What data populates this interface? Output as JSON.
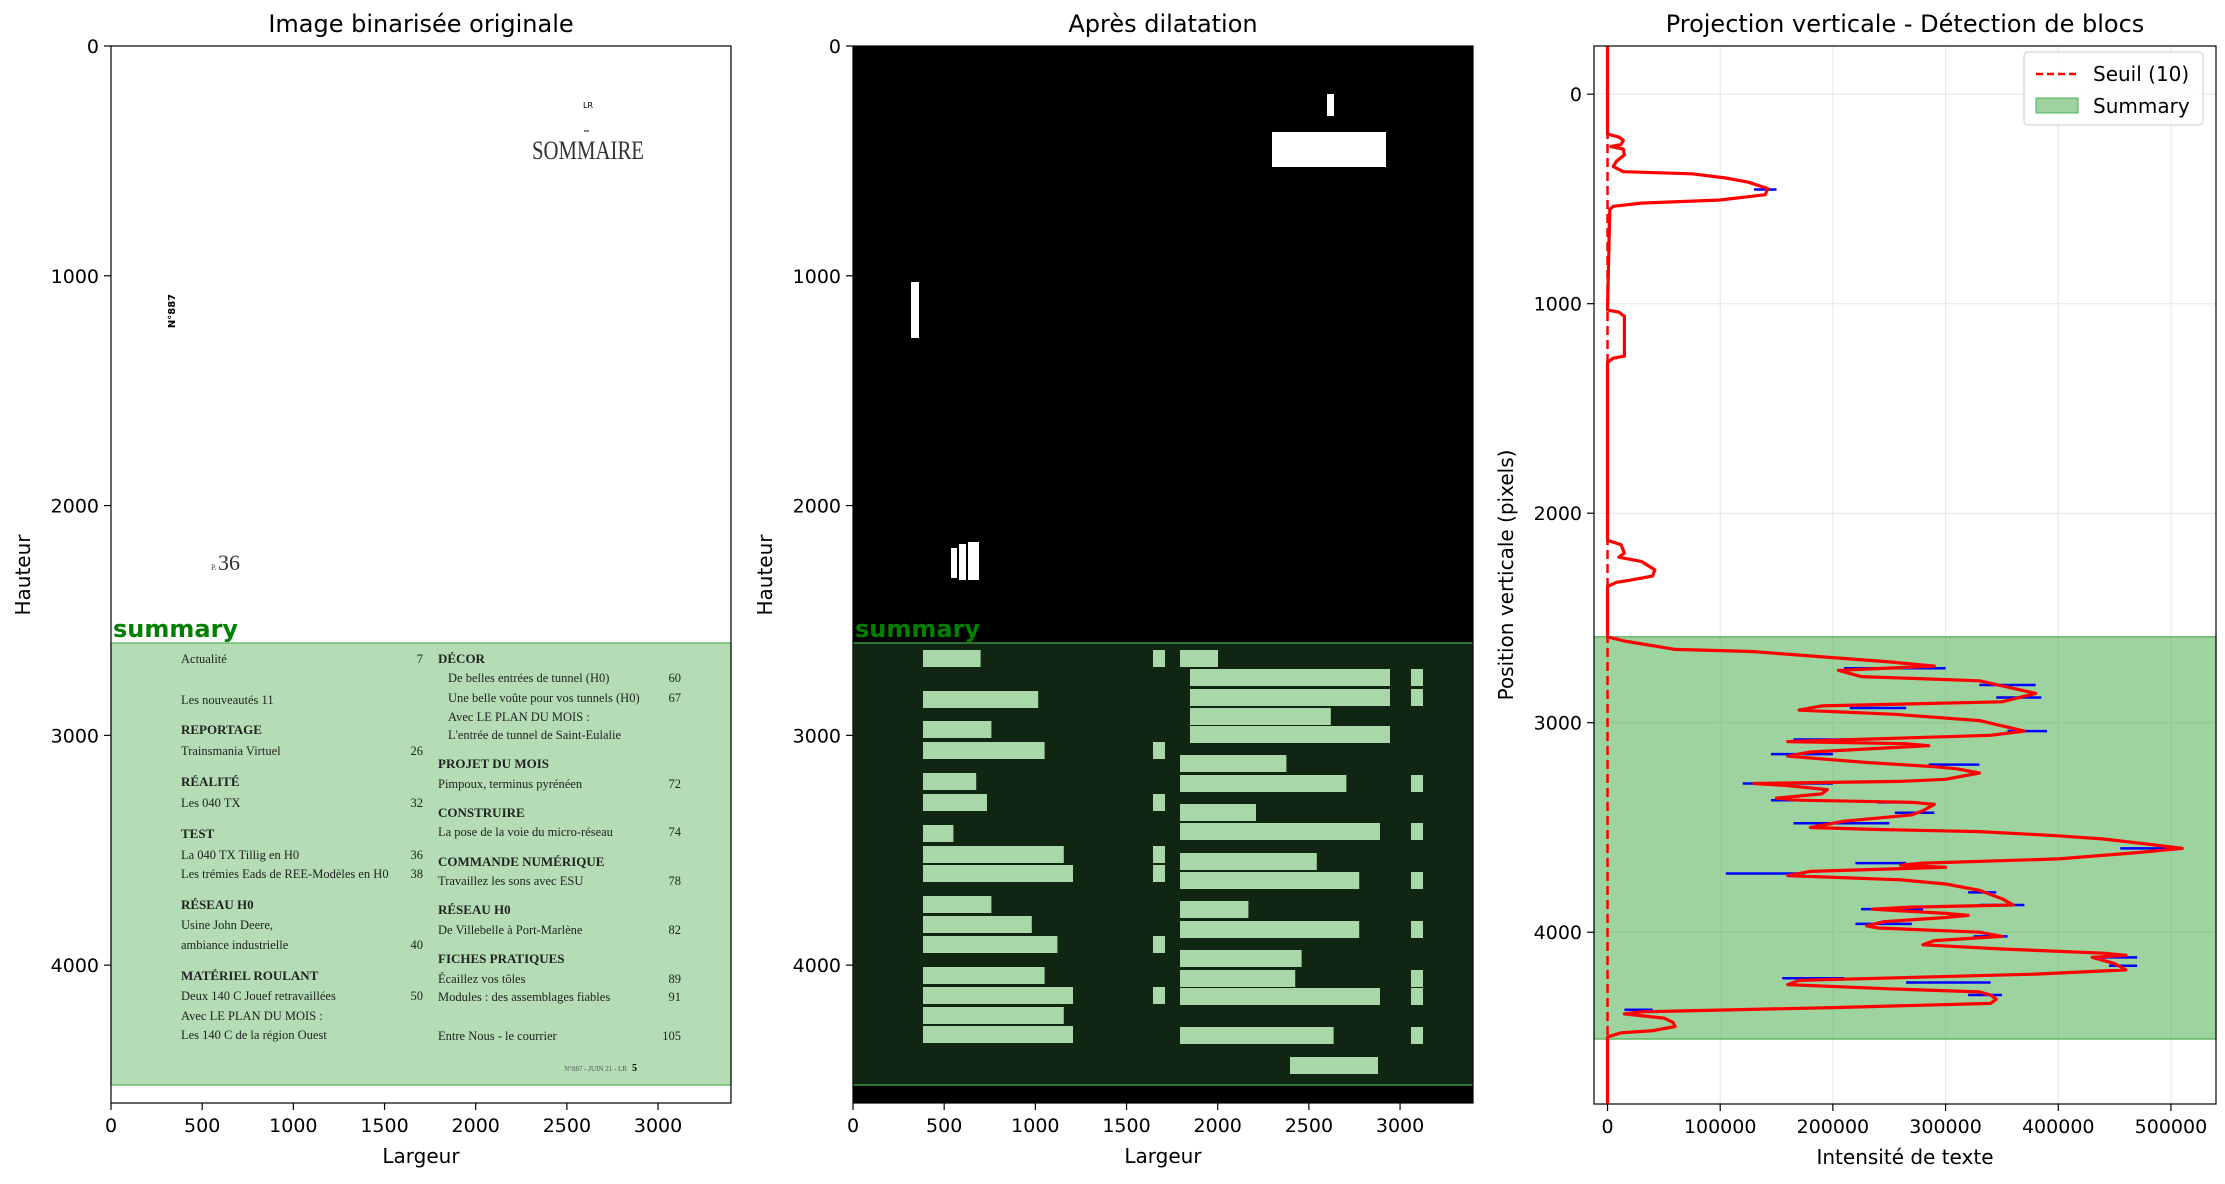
{
  "panels": {
    "original": {
      "title": "Image binarisée originale",
      "xlabel": "Largeur",
      "ylabel": "Hauteur",
      "x_ticks": [
        "0",
        "500",
        "1000",
        "1500",
        "2000",
        "2500",
        "3000"
      ],
      "y_ticks": [
        "0",
        "1000",
        "2000",
        "3000",
        "4000"
      ]
    },
    "dilated": {
      "title": "Après dilatation",
      "xlabel": "Largeur",
      "ylabel": "Hauteur",
      "x_ticks": [
        "0",
        "500",
        "1000",
        "1500",
        "2000",
        "2500",
        "3000"
      ],
      "y_ticks": [
        "0",
        "1000",
        "2000",
        "3000",
        "4000"
      ]
    },
    "summary_label": "summary"
  },
  "document": {
    "header_small": "LR",
    "sommaire": "SOMMAIRE",
    "issue_vertical": "N°887",
    "page_ref_p": "P.",
    "page_ref_num": "36",
    "left_column": [
      {
        "kind": "item",
        "text": "Actualité",
        "page": "7"
      },
      {
        "kind": "item",
        "text": "Les nouveautés  11",
        "page": ""
      },
      {
        "kind": "head",
        "text": "REPORTAGE",
        "page": ""
      },
      {
        "kind": "item",
        "text": "Trainsmania Virtuel",
        "page": "26"
      },
      {
        "kind": "head",
        "text": "RÉALITÉ",
        "page": ""
      },
      {
        "kind": "item",
        "text": "Les 040 TX",
        "page": "32"
      },
      {
        "kind": "head",
        "text": "TEST",
        "page": ""
      },
      {
        "kind": "item",
        "text": "La 040 TX Tillig en H0",
        "page": "36"
      },
      {
        "kind": "item",
        "text": "Les trémies Eads de REE-Modèles en H0",
        "page": "38"
      },
      {
        "kind": "head",
        "text": "RÉSEAU H0",
        "page": ""
      },
      {
        "kind": "item",
        "text": "Usine John Deere,",
        "page": ""
      },
      {
        "kind": "item",
        "text": "ambiance industrielle",
        "page": "40"
      },
      {
        "kind": "head",
        "text": "MATÉRIEL ROULANT",
        "page": ""
      },
      {
        "kind": "item",
        "text": "Deux 140 C Jouef retravaillées",
        "page": "50"
      },
      {
        "kind": "item",
        "text": "Avec LE PLAN DU MOIS :",
        "page": ""
      },
      {
        "kind": "item",
        "text": "Les 140 C de la région Ouest",
        "page": ""
      }
    ],
    "right_column": [
      {
        "kind": "head",
        "text": "DÉCOR",
        "page": ""
      },
      {
        "kind": "item",
        "text": "De belles entrées de tunnel (H0)",
        "page": "60"
      },
      {
        "kind": "item",
        "text": "Une belle voûte pour vos tunnels (H0)",
        "page": "67"
      },
      {
        "kind": "item",
        "text": "Avec LE PLAN DU MOIS :",
        "page": ""
      },
      {
        "kind": "item",
        "text": "L'entrée de tunnel de Saint-Eulalie",
        "page": ""
      },
      {
        "kind": "head",
        "text": "PROJET DU MOIS",
        "page": ""
      },
      {
        "kind": "item",
        "text": "Pimpoux, terminus pyrénéen",
        "page": "72"
      },
      {
        "kind": "head",
        "text": "CONSTRUIRE",
        "page": ""
      },
      {
        "kind": "item",
        "text": "La pose de la voie du micro-réseau",
        "page": "74"
      },
      {
        "kind": "head",
        "text": "COMMANDE NUMÉRIQUE",
        "page": ""
      },
      {
        "kind": "item",
        "text": "Travaillez les sons avec ESU",
        "page": "78"
      },
      {
        "kind": "head",
        "text": "RÉSEAU H0",
        "page": ""
      },
      {
        "kind": "item",
        "text": "De Villebelle à Port-Marlène",
        "page": "82"
      },
      {
        "kind": "head",
        "text": "FICHES PRATIQUES",
        "page": ""
      },
      {
        "kind": "item",
        "text": "Écaillez vos tôles",
        "page": "89"
      },
      {
        "kind": "item",
        "text": "Modules : des assemblages fiables",
        "page": "91"
      },
      {
        "kind": "item",
        "text": "Entre Nous - le courrier",
        "page": "105"
      }
    ],
    "footer_small": "N°887 - JUIN 21 - LR",
    "footer_page": "5"
  },
  "chart_data": {
    "type": "line",
    "title": "Projection verticale - Détection de blocs",
    "xlabel": "Intensité de texte",
    "ylabel": "Position verticale (pixels)",
    "xlim": [
      -12000,
      540000
    ],
    "ylim": [
      4820,
      -230
    ],
    "y_inverted": true,
    "grid": true,
    "legend_position": "top-right",
    "x_ticks": [
      "0",
      "100000",
      "200000",
      "300000",
      "400000",
      "500000"
    ],
    "y_ticks": [
      "0",
      "1000",
      "2000",
      "3000",
      "4000"
    ],
    "colors": {
      "profile": "#ff0000",
      "peaks": "#0000ff",
      "threshold": "#ff0000",
      "block": "#4caf50"
    },
    "legend": [
      {
        "label": "Seuil (10)",
        "style": "dashed-line"
      },
      {
        "label": "Summary",
        "style": "patch"
      }
    ],
    "threshold": 10,
    "block": {
      "name": "Summary",
      "y_start": 2590,
      "y_end": 4510
    },
    "profile": [
      [
        0,
        -230
      ],
      [
        0,
        190
      ],
      [
        10000,
        205
      ],
      [
        14000,
        220
      ],
      [
        12000,
        240
      ],
      [
        3000,
        250
      ],
      [
        14000,
        262
      ],
      [
        15000,
        290
      ],
      [
        8000,
        320
      ],
      [
        5000,
        345
      ],
      [
        14000,
        370
      ],
      [
        75000,
        380
      ],
      [
        105000,
        400
      ],
      [
        125000,
        420
      ],
      [
        142000,
        450
      ],
      [
        140000,
        480
      ],
      [
        100000,
        505
      ],
      [
        30000,
        520
      ],
      [
        5000,
        535
      ],
      [
        2000,
        550
      ],
      [
        0,
        1030
      ],
      [
        10000,
        1040
      ],
      [
        15000,
        1060
      ],
      [
        15000,
        1250
      ],
      [
        5000,
        1260
      ],
      [
        0,
        1280
      ],
      [
        0,
        2130
      ],
      [
        12000,
        2150
      ],
      [
        15000,
        2190
      ],
      [
        10000,
        2210
      ],
      [
        30000,
        2230
      ],
      [
        42000,
        2270
      ],
      [
        40000,
        2300
      ],
      [
        20000,
        2320
      ],
      [
        8000,
        2330
      ],
      [
        0,
        2350
      ],
      [
        0,
        2590
      ],
      [
        15000,
        2610
      ],
      [
        60000,
        2650
      ],
      [
        128000,
        2660
      ],
      [
        250000,
        2710
      ],
      [
        290000,
        2730
      ],
      [
        205000,
        2750
      ],
      [
        225000,
        2780
      ],
      [
        330000,
        2800
      ],
      [
        380000,
        2860
      ],
      [
        350000,
        2900
      ],
      [
        190000,
        2920
      ],
      [
        170000,
        2940
      ],
      [
        255000,
        2960
      ],
      [
        330000,
        2990
      ],
      [
        370000,
        3040
      ],
      [
        340000,
        3060
      ],
      [
        220000,
        3080
      ],
      [
        160000,
        3090
      ],
      [
        265000,
        3100
      ],
      [
        285000,
        3110
      ],
      [
        180000,
        3140
      ],
      [
        160000,
        3160
      ],
      [
        230000,
        3190
      ],
      [
        290000,
        3210
      ],
      [
        310000,
        3220
      ],
      [
        330000,
        3240
      ],
      [
        300000,
        3270
      ],
      [
        260000,
        3280
      ],
      [
        130000,
        3290
      ],
      [
        160000,
        3300
      ],
      [
        195000,
        3320
      ],
      [
        190000,
        3340
      ],
      [
        150000,
        3360
      ],
      [
        170000,
        3370
      ],
      [
        270000,
        3380
      ],
      [
        290000,
        3390
      ],
      [
        280000,
        3420
      ],
      [
        270000,
        3440
      ],
      [
        210000,
        3470
      ],
      [
        180000,
        3500
      ],
      [
        240000,
        3510
      ],
      [
        330000,
        3520
      ],
      [
        400000,
        3540
      ],
      [
        440000,
        3555
      ],
      [
        480000,
        3580
      ],
      [
        510000,
        3600
      ],
      [
        470000,
        3620
      ],
      [
        400000,
        3650
      ],
      [
        280000,
        3670
      ],
      [
        260000,
        3680
      ],
      [
        300000,
        3690
      ],
      [
        180000,
        3710
      ],
      [
        160000,
        3730
      ],
      [
        260000,
        3750
      ],
      [
        300000,
        3770
      ],
      [
        330000,
        3800
      ],
      [
        350000,
        3840
      ],
      [
        360000,
        3870
      ],
      [
        270000,
        3880
      ],
      [
        235000,
        3890
      ],
      [
        300000,
        3910
      ],
      [
        320000,
        3920
      ],
      [
        300000,
        3930
      ],
      [
        245000,
        3950
      ],
      [
        230000,
        3970
      ],
      [
        240000,
        3980
      ],
      [
        330000,
        4000
      ],
      [
        350000,
        4020
      ],
      [
        290000,
        4040
      ],
      [
        280000,
        4060
      ],
      [
        350000,
        4080
      ],
      [
        440000,
        4100
      ],
      [
        460000,
        4110
      ],
      [
        430000,
        4120
      ],
      [
        450000,
        4150
      ],
      [
        460000,
        4180
      ],
      [
        380000,
        4200
      ],
      [
        170000,
        4230
      ],
      [
        160000,
        4250
      ],
      [
        250000,
        4270
      ],
      [
        330000,
        4285
      ],
      [
        340000,
        4300
      ],
      [
        345000,
        4320
      ],
      [
        340000,
        4340
      ],
      [
        200000,
        4360
      ],
      [
        30000,
        4380
      ],
      [
        15000,
        4390
      ],
      [
        50000,
        4410
      ],
      [
        58000,
        4430
      ],
      [
        60000,
        4450
      ],
      [
        40000,
        4470
      ],
      [
        12000,
        4480
      ],
      [
        0,
        4500
      ],
      [
        0,
        4820
      ]
    ],
    "peak_marks": [
      [
        125000,
        455,
        130000,
        150000
      ],
      [
        250000,
        2740,
        210000,
        300000
      ],
      [
        340000,
        2820,
        330000,
        380000
      ],
      [
        350000,
        2880,
        345000,
        385000
      ],
      [
        240000,
        2930,
        215000,
        265000
      ],
      [
        360000,
        3040,
        355000,
        390000
      ],
      [
        200000,
        3080,
        165000,
        225000
      ],
      [
        170000,
        3150,
        145000,
        200000
      ],
      [
        300000,
        3200,
        285000,
        330000
      ],
      [
        170000,
        3290,
        120000,
        200000
      ],
      [
        160000,
        3370,
        145000,
        185000
      ],
      [
        250000,
        3380,
        240000,
        275000
      ],
      [
        270000,
        3430,
        255000,
        290000
      ],
      [
        215000,
        3480,
        165000,
        250000
      ],
      [
        470000,
        3600,
        455000,
        510000
      ],
      [
        235000,
        3670,
        220000,
        265000
      ],
      [
        140000,
        3720,
        105000,
        175000
      ],
      [
        330000,
        3810,
        320000,
        345000
      ],
      [
        340000,
        3870,
        330000,
        370000
      ],
      [
        250000,
        3890,
        225000,
        280000
      ],
      [
        250000,
        3960,
        220000,
        270000
      ],
      [
        330000,
        4020,
        325000,
        355000
      ],
      [
        440000,
        4120,
        430000,
        470000
      ],
      [
        460000,
        4160,
        445000,
        470000
      ],
      [
        300000,
        4240,
        265000,
        340000
      ],
      [
        170000,
        4220,
        155000,
        210000
      ],
      [
        330000,
        4300,
        320000,
        350000
      ],
      [
        25000,
        4370,
        15000,
        40000
      ]
    ]
  }
}
